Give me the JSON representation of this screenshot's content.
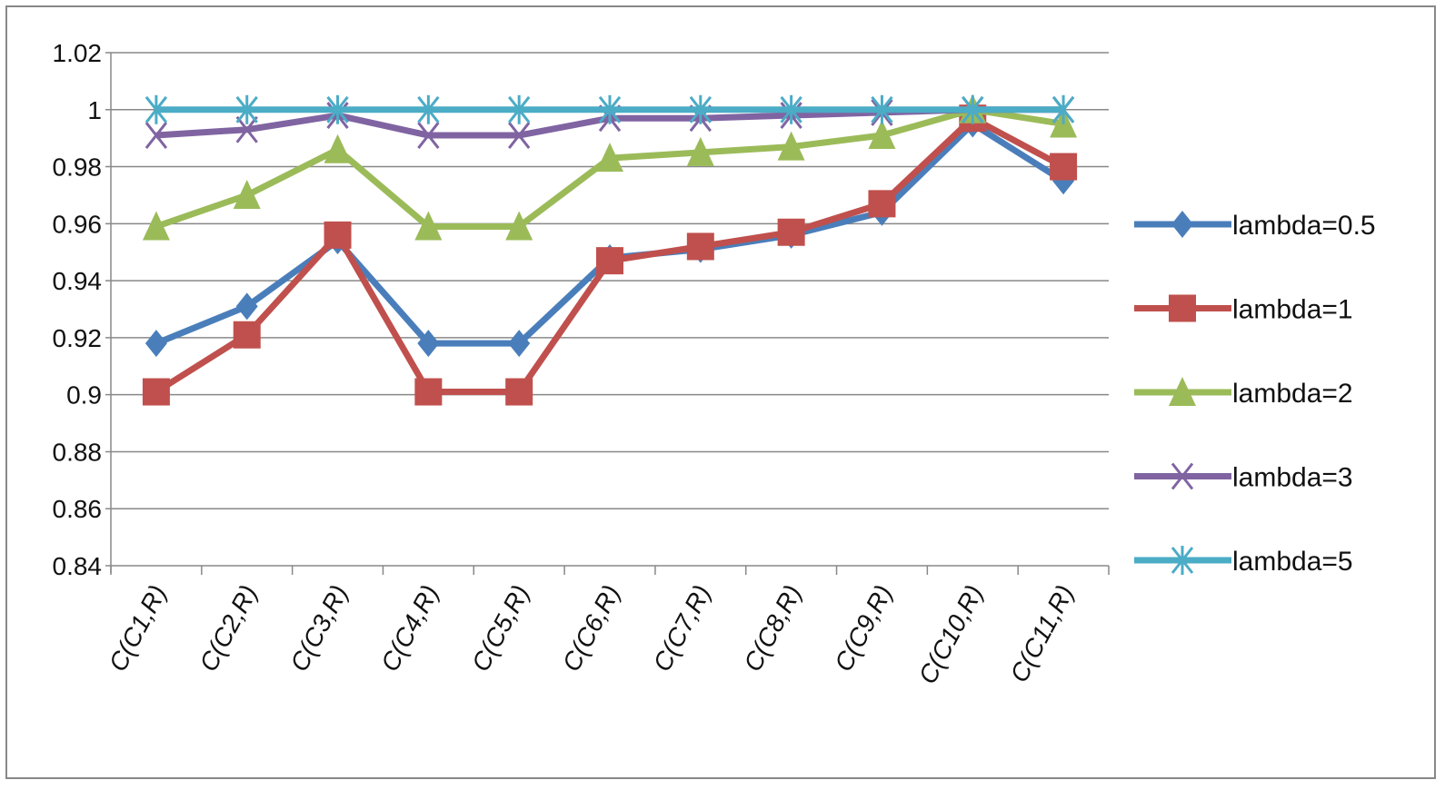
{
  "chart_data": {
    "type": "line",
    "title": "",
    "xlabel": "",
    "ylabel": "",
    "categories": [
      "C(C1,R)",
      "C(C2,R)",
      "C(C3,R)",
      "C(C4,R)",
      "C(C5,R)",
      "C(C6,R)",
      "C(C7,R)",
      "C(C8,R)",
      "C(C9,R)",
      "C(C10,R)",
      "C(C11,R)"
    ],
    "ylim": [
      0.84,
      1.02
    ],
    "yticks": [
      "0.84",
      "0.86",
      "0.88",
      "0.9",
      "0.92",
      "0.94",
      "0.96",
      "0.98",
      "1",
      "1.02"
    ],
    "grid": true,
    "legend_position": "right",
    "series": [
      {
        "name": "lambda=0.5",
        "color": "#4a7ebb",
        "marker": "diamond",
        "values": [
          0.918,
          0.931,
          0.954,
          0.918,
          0.918,
          0.948,
          0.951,
          0.956,
          0.964,
          0.995,
          0.975
        ]
      },
      {
        "name": "lambda=1",
        "color": "#c0504d",
        "marker": "square",
        "values": [
          0.901,
          0.921,
          0.956,
          0.901,
          0.901,
          0.947,
          0.952,
          0.957,
          0.967,
          0.997,
          0.98
        ]
      },
      {
        "name": "lambda=2",
        "color": "#9bbb59",
        "marker": "triangle",
        "values": [
          0.959,
          0.97,
          0.986,
          0.959,
          0.959,
          0.983,
          0.985,
          0.987,
          0.991,
          1.0,
          0.995
        ]
      },
      {
        "name": "lambda=3",
        "color": "#8064a2",
        "marker": "x",
        "values": [
          0.991,
          0.993,
          0.998,
          0.991,
          0.991,
          0.997,
          0.997,
          0.998,
          0.999,
          1.0,
          1.0
        ]
      },
      {
        "name": "lambda=5",
        "color": "#4bacc6",
        "marker": "star",
        "values": [
          1,
          1,
          1,
          1,
          1,
          1,
          1,
          1,
          1,
          1,
          1
        ]
      }
    ]
  }
}
